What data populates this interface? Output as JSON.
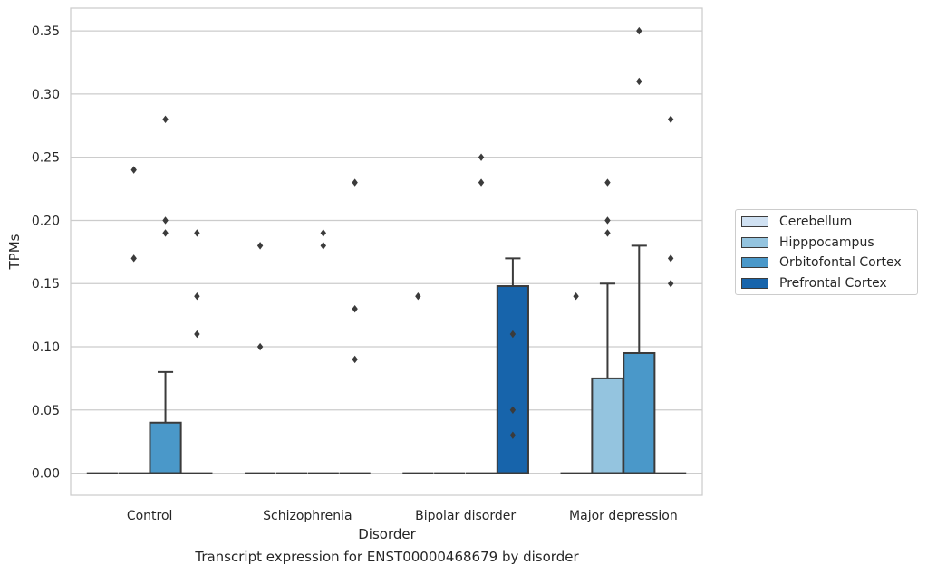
{
  "caption": "Transcript expression for ENST00000468679 by disorder",
  "chart_data": {
    "type": "box",
    "xlabel": "Disorder",
    "ylabel": "TPMs",
    "categories": [
      "Control",
      "Schizophrenia",
      "Bipolar disorder",
      "Major depression"
    ],
    "ylim": [
      -0.0175,
      0.368
    ],
    "yticks": [
      0.0,
      0.05,
      0.1,
      0.15,
      0.2,
      0.25,
      0.3,
      0.35
    ],
    "ytick_labels": [
      "0.00",
      "0.05",
      "0.10",
      "0.15",
      "0.20",
      "0.25",
      "0.30",
      "0.35"
    ],
    "grid": true,
    "legend_position": "right",
    "series": [
      {
        "name": "Cerebellum",
        "color": "#d0e1f2",
        "boxes": [
          {
            "q1": 0,
            "median": 0,
            "q3": 0,
            "whisker_low": 0,
            "whisker_high": 0,
            "outliers": []
          },
          {
            "q1": 0,
            "median": 0,
            "q3": 0,
            "whisker_low": 0,
            "whisker_high": 0,
            "outliers": [
              0.18,
              0.1
            ]
          },
          {
            "q1": 0,
            "median": 0,
            "q3": 0,
            "whisker_low": 0,
            "whisker_high": 0,
            "outliers": [
              0.14
            ]
          },
          {
            "q1": 0,
            "median": 0,
            "q3": 0,
            "whisker_low": 0,
            "whisker_high": 0,
            "outliers": [
              0.14
            ]
          }
        ]
      },
      {
        "name": "Hipppocampus",
        "color": "#94c4df",
        "boxes": [
          {
            "q1": 0,
            "median": 0,
            "q3": 0,
            "whisker_low": 0,
            "whisker_high": 0,
            "outliers": [
              0.24,
              0.17
            ]
          },
          {
            "q1": 0,
            "median": 0,
            "q3": 0,
            "whisker_low": 0,
            "whisker_high": 0,
            "outliers": []
          },
          {
            "q1": 0,
            "median": 0,
            "q3": 0,
            "whisker_low": 0,
            "whisker_high": 0,
            "outliers": []
          },
          {
            "q1": 0,
            "median": 0,
            "q3": 0.075,
            "whisker_low": 0,
            "whisker_high": 0.15,
            "outliers": [
              0.23,
              0.2,
              0.19
            ]
          }
        ]
      },
      {
        "name": "Orbitofontal Cortex",
        "color": "#4a98c9",
        "boxes": [
          {
            "q1": 0,
            "median": 0,
            "q3": 0.04,
            "whisker_low": 0,
            "whisker_high": 0.08,
            "outliers": [
              0.28,
              0.2,
              0.19
            ]
          },
          {
            "q1": 0,
            "median": 0,
            "q3": 0,
            "whisker_low": 0,
            "whisker_high": 0,
            "outliers": [
              0.19,
              0.18
            ]
          },
          {
            "q1": 0,
            "median": 0,
            "q3": 0,
            "whisker_low": 0,
            "whisker_high": 0,
            "outliers": [
              0.25,
              0.23
            ]
          },
          {
            "q1": 0,
            "median": 0,
            "q3": 0.095,
            "whisker_low": 0,
            "whisker_high": 0.18,
            "outliers": [
              0.35,
              0.31
            ]
          }
        ]
      },
      {
        "name": "Prefrontal Cortex",
        "color": "#1764ab",
        "boxes": [
          {
            "q1": 0,
            "median": 0,
            "q3": 0,
            "whisker_low": 0,
            "whisker_high": 0,
            "outliers": [
              0.19,
              0.14,
              0.11
            ]
          },
          {
            "q1": 0,
            "median": 0,
            "q3": 0,
            "whisker_low": 0,
            "whisker_high": 0,
            "outliers": [
              0.23,
              0.13,
              0.09
            ]
          },
          {
            "q1": 0,
            "median": 0,
            "q3": 0.148,
            "whisker_low": 0,
            "whisker_high": 0.17,
            "outliers": [
              0.11,
              0.05,
              0.03
            ]
          },
          {
            "q1": 0,
            "median": 0,
            "q3": 0,
            "whisker_low": 0,
            "whisker_high": 0,
            "outliers": [
              0.28,
              0.17,
              0.15
            ]
          }
        ]
      }
    ]
  }
}
